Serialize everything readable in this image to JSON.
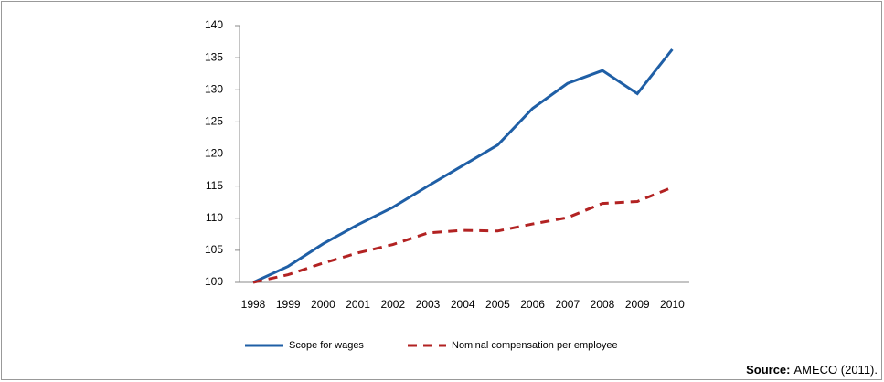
{
  "chart_data": {
    "type": "line",
    "categories": [
      "1998",
      "1999",
      "2000",
      "2001",
      "2002",
      "2003",
      "2004",
      "2005",
      "2006",
      "2007",
      "2008",
      "2009",
      "2010"
    ],
    "series": [
      {
        "name": "Scope for wages",
        "color": "#1f5fa6",
        "dash": false,
        "values": [
          100,
          102.5,
          106,
          109,
          111.7,
          115,
          118.2,
          121.4,
          127.1,
          131,
          133,
          129.4,
          136.3
        ]
      },
      {
        "name": "Nominal compensation per employee",
        "color": "#b22222",
        "dash": true,
        "values": [
          100,
          101.2,
          103,
          104.6,
          105.9,
          107.7,
          108.1,
          108,
          109.1,
          110.1,
          112.3,
          112.6,
          114.8
        ]
      }
    ],
    "ylim": [
      100,
      140
    ],
    "yticks": [
      100,
      105,
      110,
      115,
      120,
      125,
      130,
      135,
      140
    ],
    "grid": false,
    "legend": "bottom",
    "source_label": "Source:",
    "source_text": "AMECO (2011)."
  }
}
